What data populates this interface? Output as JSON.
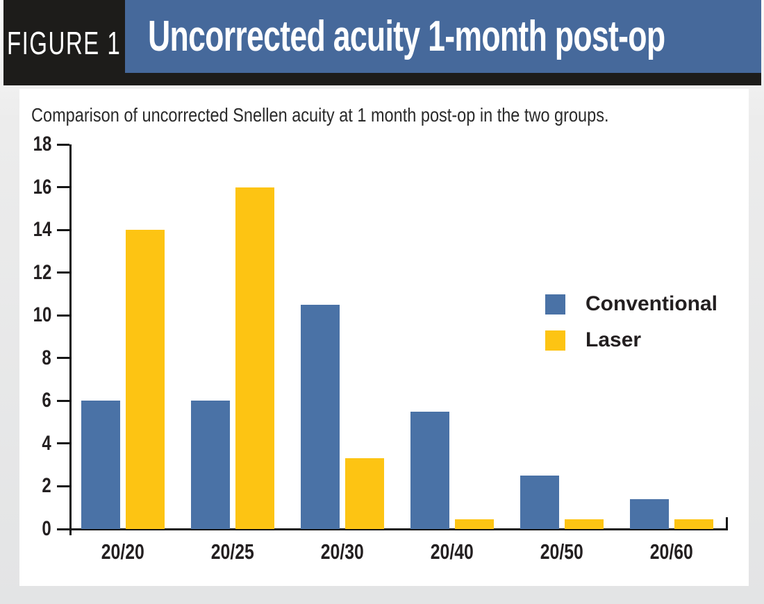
{
  "figure": {
    "label": "FIGURE 1",
    "title": "Uncorrected acuity 1-month post-op"
  },
  "subtitle": "Comparison of uncorrected Snellen acuity at 1 month post-op in the two groups.",
  "colors": {
    "banner_blue": "#46699b",
    "header_black": "#1d1c1a",
    "bar_blue": "#4a72a6",
    "bar_yellow": "#fdc413",
    "axis_black": "#161616",
    "text_dark": "#231f20",
    "card_white": "#ffffff",
    "page_gray": "#e3e4e5"
  },
  "chart_data": {
    "type": "bar",
    "title": "Uncorrected acuity 1-month post-op",
    "subtitle": "Comparison of uncorrected Snellen acuity at 1 month post-op in the two groups.",
    "categories": [
      "20/20",
      "20/25",
      "20/30",
      "20/40",
      "20/50",
      "20/60"
    ],
    "series": [
      {
        "name": "Conventional",
        "color": "#4a72a6",
        "values": [
          6,
          6,
          10.5,
          5.5,
          2.5,
          1.4
        ]
      },
      {
        "name": "Laser",
        "color": "#fdc413",
        "values": [
          14,
          16,
          3.3,
          0.45,
          0.45,
          0.45
        ]
      }
    ],
    "xlabel": "",
    "ylabel": "",
    "ylim": [
      0,
      18
    ],
    "yticks": [
      0,
      2,
      4,
      6,
      8,
      10,
      12,
      14,
      16,
      18
    ],
    "grid": false,
    "legend_position": "center-right"
  }
}
